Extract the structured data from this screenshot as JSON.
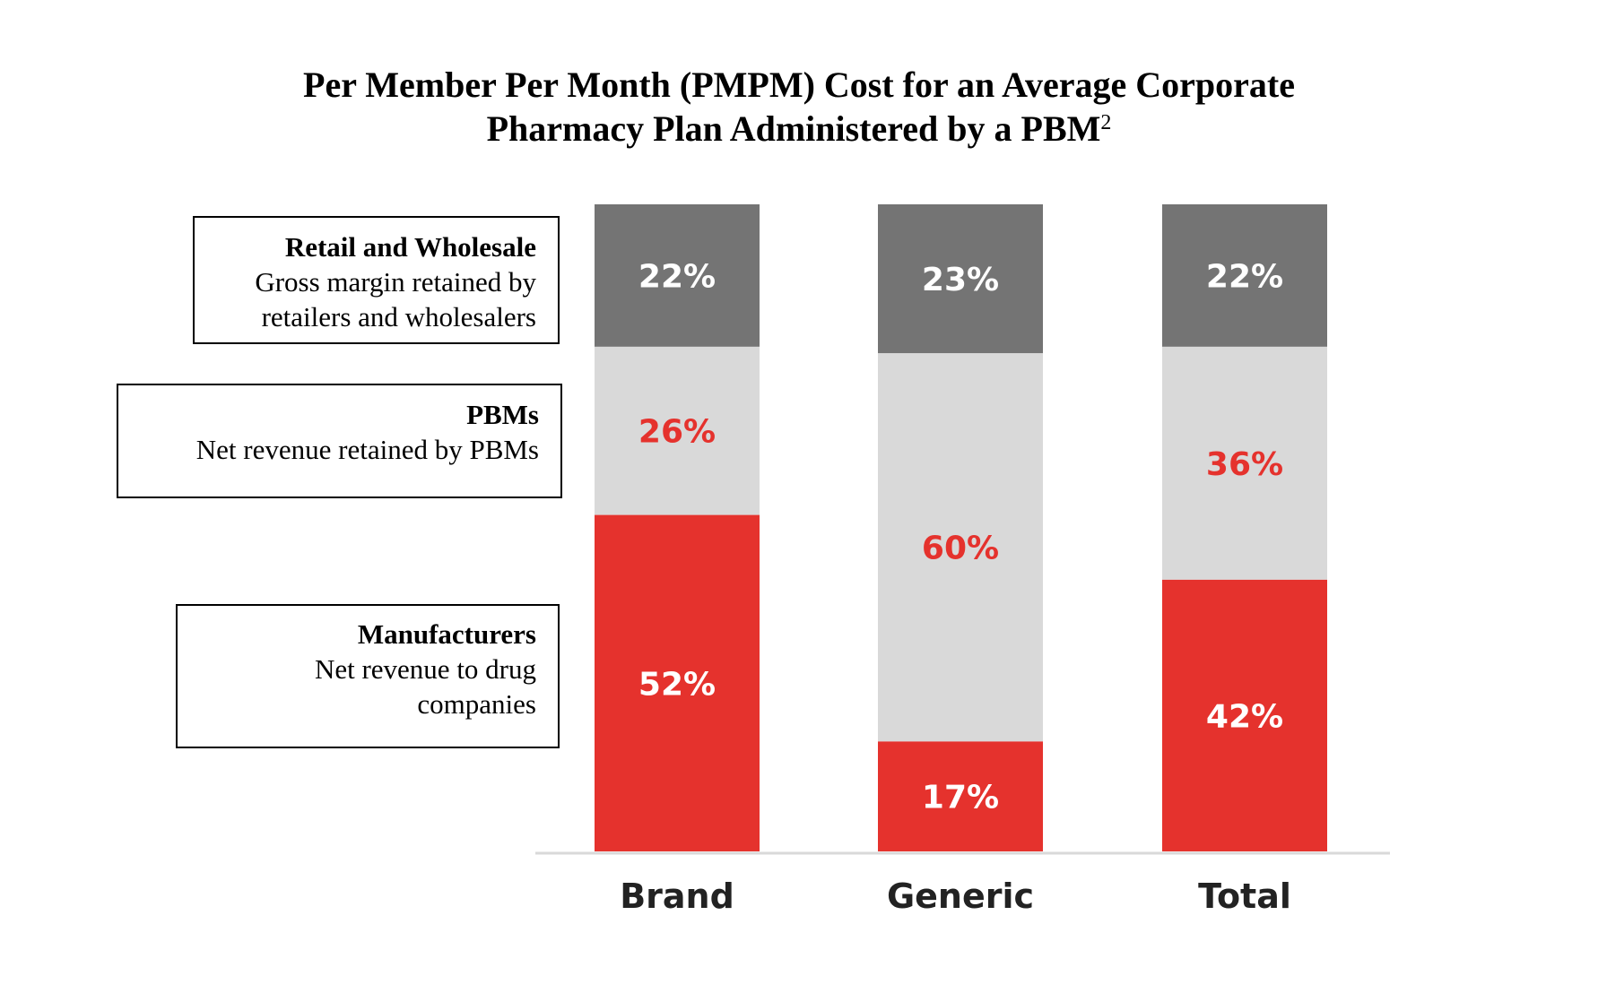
{
  "title": {
    "line1": "Per Member Per Month (PMPM) Cost for an Average Corporate",
    "line2": "Pharmacy Plan Administered by a PBM",
    "superscript": "2"
  },
  "legend": {
    "retail": {
      "header": "Retail and Wholesale",
      "desc_line1": "Gross margin retained by",
      "desc_line2": "retailers and wholesalers"
    },
    "pbms": {
      "header": "PBMs",
      "desc_line1": "Net revenue retained by PBMs"
    },
    "manufacturers": {
      "header": "Manufacturers",
      "desc_line1": "Net revenue to drug",
      "desc_line2": "companies"
    }
  },
  "colors": {
    "retail": "#747474",
    "pbms": "#d9d9d9",
    "manufacturers": "#e5322d",
    "axis": "#d9d9d9",
    "red_text": "#e5322d",
    "white_text": "#ffffff"
  },
  "chart_data": {
    "type": "bar",
    "stacked": true,
    "percent_stacked": true,
    "categories": [
      "Brand",
      "Generic",
      "Total"
    ],
    "series": [
      {
        "name": "Manufacturers",
        "values": [
          52,
          17,
          42
        ],
        "labels": [
          "52%",
          "17%",
          "42%"
        ],
        "label_color": "white"
      },
      {
        "name": "PBMs",
        "values": [
          26,
          60,
          36
        ],
        "labels": [
          "26%",
          "60%",
          "36%"
        ],
        "label_color": "red"
      },
      {
        "name": "Retail and Wholesale",
        "values": [
          22,
          23,
          22
        ],
        "labels": [
          "22%",
          "23%",
          "22%"
        ],
        "label_color": "white"
      }
    ],
    "ylim": [
      0,
      100
    ],
    "grid": false,
    "legend_position": "left"
  }
}
